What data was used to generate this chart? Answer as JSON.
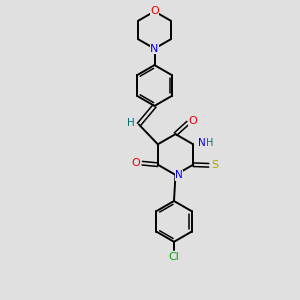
{
  "bg_color": "#e0e0e0",
  "bond_color": "#000000",
  "colors": {
    "N": "#0000ee",
    "O": "#ee0000",
    "S": "#aaaa00",
    "Cl": "#00aa00",
    "C": "#000000",
    "H": "#007070"
  }
}
